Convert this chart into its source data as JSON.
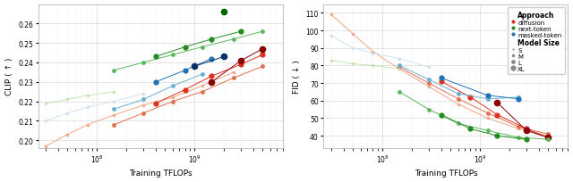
{
  "left": {
    "ylabel": "CLIP ( ↑ )",
    "xlabel": "Training TFLOPs",
    "ylim": [
      0.196,
      0.27
    ],
    "yticks": [
      0.2,
      0.21,
      0.22,
      0.23,
      0.24,
      0.25,
      0.26
    ],
    "xlim": [
      25000000.0,
      8000000000.0
    ],
    "series": [
      {
        "approach": "diffusion",
        "size": "S",
        "color": "#f4a582",
        "alpha": 1.0,
        "x": [
          30000000.0,
          50000000.0,
          80000000.0,
          150000000.0,
          300000000.0,
          600000000.0,
          1200000000.0,
          2500000000.0
        ],
        "y": [
          0.197,
          0.203,
          0.208,
          0.213,
          0.218,
          0.222,
          0.228,
          0.235
        ]
      },
      {
        "approach": "diffusion",
        "size": "M",
        "color": "#e07050",
        "alpha": 1.0,
        "x": [
          150000000.0,
          300000000.0,
          600000000.0,
          1200000000.0,
          2500000000.0,
          5000000000.0
        ],
        "y": [
          0.208,
          0.214,
          0.22,
          0.225,
          0.232,
          0.238
        ]
      },
      {
        "approach": "diffusion",
        "size": "L",
        "color": "#e03020",
        "alpha": 1.0,
        "x": [
          400000000.0,
          800000000.0,
          1500000000.0,
          3000000000.0,
          5000000000.0
        ],
        "y": [
          0.219,
          0.226,
          0.233,
          0.239,
          0.244
        ]
      },
      {
        "approach": "diffusion",
        "size": "XL",
        "color": "#8b0000",
        "alpha": 1.0,
        "x": [
          1500000000.0,
          3000000000.0,
          5000000000.0
        ],
        "y": [
          0.23,
          0.241,
          0.247
        ]
      },
      {
        "approach": "next-token",
        "size": "S",
        "color": "#b8e0a0",
        "alpha": 0.8,
        "x": [
          30000000.0,
          50000000.0,
          80000000.0,
          150000000.0
        ],
        "y": [
          0.219,
          0.221,
          0.223,
          0.225
        ]
      },
      {
        "approach": "next-token",
        "size": "M",
        "color": "#5cb85c",
        "alpha": 1.0,
        "x": [
          150000000.0,
          300000000.0,
          600000000.0,
          1200000000.0,
          2500000000.0,
          5000000000.0
        ],
        "y": [
          0.236,
          0.24,
          0.244,
          0.248,
          0.252,
          0.256
        ]
      },
      {
        "approach": "next-token",
        "size": "L",
        "color": "#228B22",
        "alpha": 1.0,
        "x": [
          400000000.0,
          800000000.0,
          1500000000.0,
          3000000000.0
        ],
        "y": [
          0.243,
          0.248,
          0.252,
          0.256
        ]
      },
      {
        "approach": "next-token",
        "size": "XL",
        "color": "#006400",
        "alpha": 1.0,
        "x": [
          2000000000.0
        ],
        "y": [
          0.266
        ]
      },
      {
        "approach": "masked-token",
        "size": "S",
        "color": "#c6dcf0",
        "alpha": 0.8,
        "x": [
          30000000.0,
          50000000.0,
          80000000.0,
          150000000.0,
          300000000.0
        ],
        "y": [
          0.21,
          0.214,
          0.217,
          0.22,
          0.224
        ]
      },
      {
        "approach": "masked-token",
        "size": "M",
        "color": "#6baed6",
        "alpha": 1.0,
        "x": [
          150000000.0,
          300000000.0,
          600000000.0,
          1200000000.0
        ],
        "y": [
          0.216,
          0.221,
          0.228,
          0.234
        ]
      },
      {
        "approach": "masked-token",
        "size": "L",
        "color": "#2171b5",
        "alpha": 1.0,
        "x": [
          400000000.0,
          800000000.0,
          1500000000.0
        ],
        "y": [
          0.23,
          0.236,
          0.242
        ]
      },
      {
        "approach": "masked-token",
        "size": "XL",
        "color": "#08306b",
        "alpha": 1.0,
        "x": [
          1000000000.0,
          2000000000.0
        ],
        "y": [
          0.238,
          0.243
        ]
      }
    ]
  },
  "right": {
    "ylabel": "FID ( ↓ )",
    "xlabel": "Training TFLOPs",
    "ylim": [
      33,
      115
    ],
    "yticks": [
      40,
      50,
      60,
      70,
      80,
      90,
      100,
      110
    ],
    "xlim": [
      25000000.0,
      8000000000.0
    ],
    "series": [
      {
        "approach": "diffusion",
        "size": "S",
        "color": "#f4a582",
        "alpha": 1.0,
        "x": [
          30000000.0,
          50000000.0,
          80000000.0,
          150000000.0,
          300000000.0,
          600000000.0,
          1200000000.0,
          2500000000.0,
          5000000000.0
        ],
        "y": [
          109,
          98,
          88,
          78,
          68,
          58,
          50,
          44,
          40
        ]
      },
      {
        "approach": "diffusion",
        "size": "M",
        "color": "#e07050",
        "alpha": 1.0,
        "x": [
          150000000.0,
          300000000.0,
          600000000.0,
          1200000000.0,
          2500000000.0,
          5000000000.0
        ],
        "y": [
          79,
          70,
          61,
          53,
          45,
          41
        ]
      },
      {
        "approach": "diffusion",
        "size": "L",
        "color": "#e03020",
        "alpha": 1.0,
        "x": [
          400000000.0,
          800000000.0,
          1500000000.0,
          3000000000.0,
          5000000000.0
        ],
        "y": [
          71,
          62,
          52,
          44,
          39
        ]
      },
      {
        "approach": "diffusion",
        "size": "XL",
        "color": "#8b0000",
        "alpha": 1.0,
        "x": [
          1500000000.0,
          3000000000.0,
          5000000000.0
        ],
        "y": [
          59,
          43,
          39
        ]
      },
      {
        "approach": "next-token",
        "size": "S",
        "color": "#b8e0a0",
        "alpha": 0.8,
        "x": [
          30000000.0,
          50000000.0,
          80000000.0,
          150000000.0
        ],
        "y": [
          83,
          81,
          80,
          78
        ]
      },
      {
        "approach": "next-token",
        "size": "M",
        "color": "#5cb85c",
        "alpha": 1.0,
        "x": [
          150000000.0,
          300000000.0,
          600000000.0,
          1200000000.0,
          2500000000.0,
          5000000000.0
        ],
        "y": [
          65,
          55,
          47,
          43,
          39,
          38
        ]
      },
      {
        "approach": "next-token",
        "size": "L",
        "color": "#228B22",
        "alpha": 1.0,
        "x": [
          400000000.0,
          800000000.0,
          1500000000.0,
          3000000000.0
        ],
        "y": [
          52,
          44,
          40,
          38
        ]
      },
      {
        "approach": "masked-token",
        "size": "S",
        "color": "#c6dcf0",
        "alpha": 0.8,
        "x": [
          30000000.0,
          50000000.0,
          80000000.0,
          150000000.0,
          300000000.0
        ],
        "y": [
          97,
          90,
          87,
          84,
          79
        ]
      },
      {
        "approach": "masked-token",
        "size": "M",
        "color": "#6baed6",
        "alpha": 1.0,
        "x": [
          150000000.0,
          300000000.0,
          600000000.0,
          1200000000.0,
          2500000000.0
        ],
        "y": [
          80,
          72,
          64,
          61,
          62
        ]
      },
      {
        "approach": "masked-token",
        "size": "L",
        "color": "#2171b5",
        "alpha": 1.0,
        "x": [
          400000000.0,
          1200000000.0,
          2500000000.0
        ],
        "y": [
          73,
          63,
          61
        ]
      }
    ]
  },
  "legend": {
    "approaches": [
      {
        "label": "diffusion",
        "color": "#e03020"
      },
      {
        "label": "next-token",
        "color": "#228B22"
      },
      {
        "label": "masked-token",
        "color": "#2171b5"
      }
    ],
    "sizes": [
      {
        "label": "S",
        "size": 3
      },
      {
        "label": "M",
        "size": 4
      },
      {
        "label": "L",
        "size": 5
      },
      {
        "label": "XL",
        "size": 6
      }
    ]
  }
}
